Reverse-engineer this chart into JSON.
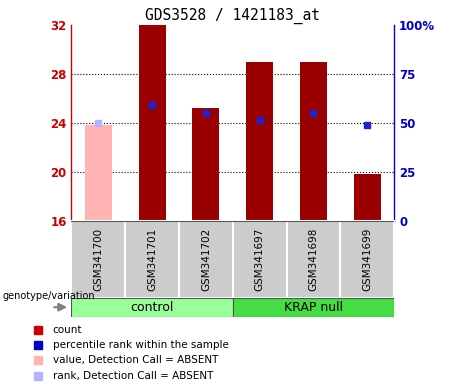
{
  "title": "GDS3528 / 1421183_at",
  "samples": [
    "GSM341700",
    "GSM341701",
    "GSM341702",
    "GSM341697",
    "GSM341698",
    "GSM341699"
  ],
  "ylim_left": [
    16,
    32
  ],
  "ylim_right": [
    0,
    100
  ],
  "yticks_left": [
    16,
    20,
    24,
    28,
    32
  ],
  "yticks_right": [
    0,
    25,
    50,
    75,
    100
  ],
  "bar_values": [
    23.8,
    32.0,
    25.2,
    29.0,
    29.0,
    19.8
  ],
  "bar_colors": [
    "#ffb3b3",
    "#9b0000",
    "#9b0000",
    "#9b0000",
    "#9b0000",
    "#9b0000"
  ],
  "dot_values": [
    24.0,
    25.5,
    24.8,
    24.2,
    24.8,
    23.8
  ],
  "dot_colors": [
    "#b3b3ff",
    "#2222cc",
    "#2222cc",
    "#2222cc",
    "#2222cc",
    "#2222cc"
  ],
  "base_value": 16,
  "control_color": "#99ff99",
  "krap_color": "#44dd44",
  "bg_color": "#cccccc",
  "left_axis_color": "#cc0000",
  "right_axis_color": "#0000cc",
  "legend_items": [
    {
      "color": "#cc0000",
      "label": "count"
    },
    {
      "color": "#0000cc",
      "label": "percentile rank within the sample"
    },
    {
      "color": "#ffb3b3",
      "label": "value, Detection Call = ABSENT"
    },
    {
      "color": "#b3b3ff",
      "label": "rank, Detection Call = ABSENT"
    }
  ]
}
